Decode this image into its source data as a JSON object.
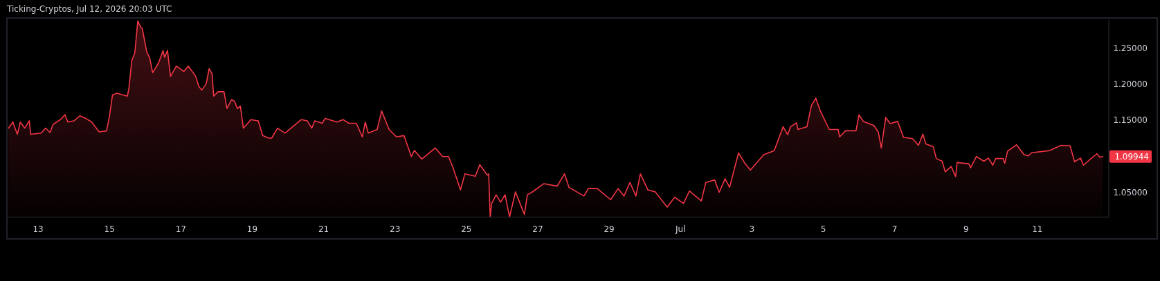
{
  "chart_data": {
    "type": "area",
    "title": "Ticking-Cryptos, Jul 12, 2026 20:03 UTC",
    "xlim": [
      "2026-06-12T03:00",
      "2026-07-13T00:00"
    ],
    "ylim": [
      1.0155,
      1.2893
    ],
    "xticks": [
      {
        "value": "2026-06-13",
        "label": "13"
      },
      {
        "value": "2026-06-15",
        "label": "15"
      },
      {
        "value": "2026-06-17",
        "label": "17"
      },
      {
        "value": "2026-06-19",
        "label": "19"
      },
      {
        "value": "2026-06-21",
        "label": "21"
      },
      {
        "value": "2026-06-23",
        "label": "23"
      },
      {
        "value": "2026-06-25",
        "label": "25"
      },
      {
        "value": "2026-06-27",
        "label": "27"
      },
      {
        "value": "2026-06-29",
        "label": "29"
      },
      {
        "value": "2026-07-01",
        "label": "Jul"
      },
      {
        "value": "2026-07-03",
        "label": "3"
      },
      {
        "value": "2026-07-05",
        "label": "5"
      },
      {
        "value": "2026-07-07",
        "label": "7"
      },
      {
        "value": "2026-07-09",
        "label": "9"
      },
      {
        "value": "2026-07-11",
        "label": "11"
      }
    ],
    "yticks": [
      {
        "value": 1.05,
        "label": "1.05000"
      },
      {
        "value": 1.15,
        "label": "1.15000"
      },
      {
        "value": 1.2,
        "label": "1.20000"
      },
      {
        "value": 1.25,
        "label": "1.25000"
      }
    ],
    "grid": false,
    "annotations": [
      "1.09944"
    ],
    "x": [
      "2026-06-12T04:00",
      "2026-06-12T07:00",
      "2026-06-12T10:00",
      "2026-06-12T12:00",
      "2026-06-12T15:00",
      "2026-06-12T18:00",
      "2026-06-12T19:00",
      "2026-06-13T02:00",
      "2026-06-13T05:00",
      "2026-06-13T08:00",
      "2026-06-13T10:00",
      "2026-06-13T15:00",
      "2026-06-13T18:00",
      "2026-06-13T20:00",
      "2026-06-14T00:00",
      "2026-06-14T04:00",
      "2026-06-14T08:00",
      "2026-06-14T12:00",
      "2026-06-14T17:00",
      "2026-06-14T22:00",
      "2026-06-15T00:00",
      "2026-06-15T02:00",
      "2026-06-15T05:00",
      "2026-06-15T12:00",
      "2026-06-15T13:00",
      "2026-06-15T15:00",
      "2026-06-15T17:00",
      "2026-06-15T19:00",
      "2026-06-15T21:00",
      "2026-06-15T22:00",
      "2026-06-16T01:00",
      "2026-06-16T03:00",
      "2026-06-16T05:00",
      "2026-06-16T09:00",
      "2026-06-16T12:00",
      "2026-06-16T13:00",
      "2026-06-16T15:00",
      "2026-06-16T17:00",
      "2026-06-16T21:00",
      "2026-06-17T02:00",
      "2026-06-17T05:00",
      "2026-06-17T10:00",
      "2026-06-17T12:00",
      "2026-06-17T14:00",
      "2026-06-17T17:00",
      "2026-06-17T19:00",
      "2026-06-17T21:00",
      "2026-06-17T22:00",
      "2026-06-18T01:00",
      "2026-06-18T05:00",
      "2026-06-18T07:00",
      "2026-06-18T10:00",
      "2026-06-18T12:00",
      "2026-06-18T14:00",
      "2026-06-18T16:00",
      "2026-06-18T18:00",
      "2026-06-18T21:00",
      "2026-06-18T23:00",
      "2026-06-19T04:00",
      "2026-06-19T07:00",
      "2026-06-19T11:00",
      "2026-06-19T13:00",
      "2026-06-19T17:00",
      "2026-06-19T22:00",
      "2026-06-20T02:00",
      "2026-06-20T09:00",
      "2026-06-20T13:00",
      "2026-06-20T16:00",
      "2026-06-20T18:00",
      "2026-06-20T23:00",
      "2026-06-21T01:00",
      "2026-06-21T09:00",
      "2026-06-21T13:00",
      "2026-06-21T17:00",
      "2026-06-21T22:00",
      "2026-06-22T02:00",
      "2026-06-22T04:00",
      "2026-06-22T06:00",
      "2026-06-22T12:00",
      "2026-06-22T15:00",
      "2026-06-22T20:00",
      "2026-06-23T01:00",
      "2026-06-23T06:00",
      "2026-06-23T11:00",
      "2026-06-23T13:00",
      "2026-06-23T18:00",
      "2026-06-24T03:00",
      "2026-06-24T08:00",
      "2026-06-24T12:00",
      "2026-06-24T15:00",
      "2026-06-24T20:00",
      "2026-06-24T23:00",
      "2026-06-25T06:00",
      "2026-06-25T09:00",
      "2026-06-25T14:00",
      "2026-06-25T15:00",
      "2026-06-25T16:00",
      "2026-06-25T17:00",
      "2026-06-25T20:00",
      "2026-06-25T23:00",
      "2026-06-26T02:00",
      "2026-06-26T05:00",
      "2026-06-26T09:00",
      "2026-06-26T15:00",
      "2026-06-26T17:00",
      "2026-06-26T20:00",
      "2026-06-27T04:00",
      "2026-06-27T13:00",
      "2026-06-27T18:00",
      "2026-06-27T21:00",
      "2026-06-28T07:00",
      "2026-06-28T10:00",
      "2026-06-28T16:00",
      "2026-06-29T01:00",
      "2026-06-29T06:00",
      "2026-06-29T10:00",
      "2026-06-29T14:00",
      "2026-06-29T18:00",
      "2026-06-29T21:00",
      "2026-06-30T02:00",
      "2026-06-30T07:00",
      "2026-06-30T15:00",
      "2026-06-30T20:00",
      "2026-07-01T02:00",
      "2026-07-01T06:00",
      "2026-07-01T14:00",
      "2026-07-01T17:00",
      "2026-07-01T23:00",
      "2026-07-02T02:00",
      "2026-07-02T06:00",
      "2026-07-02T09:00",
      "2026-07-02T15:00",
      "2026-07-02T19:00",
      "2026-07-02T23:00",
      "2026-07-03T08:00",
      "2026-07-03T15:00",
      "2026-07-03T21:00",
      "2026-07-04T00:00",
      "2026-07-04T02:00",
      "2026-07-04T06:00",
      "2026-07-04T07:00",
      "2026-07-04T13:00",
      "2026-07-04T16:00",
      "2026-07-04T19:00",
      "2026-07-04T22:00",
      "2026-07-05T04:00",
      "2026-07-05T10:00",
      "2026-07-05T11:00",
      "2026-07-05T15:00",
      "2026-07-05T22:00",
      "2026-07-06T00:00",
      "2026-07-06T03:00",
      "2026-07-06T10:00",
      "2026-07-06T13:00",
      "2026-07-06T15:00",
      "2026-07-06T18:00",
      "2026-07-06T21:00",
      "2026-07-07T02:00",
      "2026-07-07T06:00",
      "2026-07-07T12:00",
      "2026-07-07T16:00",
      "2026-07-07T19:00",
      "2026-07-07T21:00",
      "2026-07-08T02:00",
      "2026-07-08T04:00",
      "2026-07-08T08:00",
      "2026-07-08T10:00",
      "2026-07-08T14:00",
      "2026-07-08T17:00",
      "2026-07-08T18:00",
      "2026-07-09T02:00",
      "2026-07-09T03:00",
      "2026-07-09T07:00",
      "2026-07-09T12:00",
      "2026-07-09T15:00",
      "2026-07-09T18:00",
      "2026-07-09T20:00",
      "2026-07-10T01:00",
      "2026-07-10T02:00",
      "2026-07-10T04:00",
      "2026-07-10T10:00",
      "2026-07-10T15:00",
      "2026-07-10T18:00",
      "2026-07-10T20:00",
      "2026-07-11T08:00",
      "2026-07-11T16:00",
      "2026-07-11T22:00",
      "2026-07-12T01:00",
      "2026-07-12T05:00",
      "2026-07-12T07:00",
      "2026-07-12T11:00",
      "2026-07-12T16:00",
      "2026-07-12T18:00",
      "2026-07-12T20:00"
    ],
    "series": [
      {
        "color": "#f23645",
        "values": [
          1.1388,
          1.1474,
          1.1303,
          1.1474,
          1.1388,
          1.1491,
          1.1303,
          1.132,
          1.139,
          1.1327,
          1.144,
          1.1508,
          1.1576,
          1.1474,
          1.149,
          1.156,
          1.1525,
          1.1474,
          1.1337,
          1.135,
          1.156,
          1.185,
          1.1874,
          1.1833,
          1.1935,
          1.2329,
          1.2432,
          1.2876,
          1.2791,
          1.2774,
          1.2449,
          1.2363,
          1.2158,
          1.2295,
          1.2466,
          1.2373,
          1.2466,
          1.2107,
          1.225,
          1.2175,
          1.225,
          1.2107,
          1.197,
          1.1918,
          1.2004,
          1.2216,
          1.2141,
          1.1833,
          1.1894,
          1.1894,
          1.1662,
          1.1782,
          1.1764,
          1.1662,
          1.1696,
          1.1388,
          1.1457,
          1.1508,
          1.1491,
          1.1286,
          1.1251,
          1.1251,
          1.1388,
          1.132,
          1.1388,
          1.1508,
          1.1491,
          1.1388,
          1.1491,
          1.1457,
          1.1525,
          1.1474,
          1.1508,
          1.1457,
          1.1457,
          1.1268,
          1.1474,
          1.132,
          1.1371,
          1.1628,
          1.1371,
          1.1268,
          1.1286,
          1.0995,
          1.108,
          1.096,
          1.1114,
          1.0995,
          1.0995,
          1.0841,
          1.0533,
          1.0755,
          1.0721,
          1.0882,
          1.0738,
          1.0755,
          1.0157,
          1.0345,
          1.0464,
          1.0362,
          1.0464,
          1.0157,
          1.0505,
          1.0191,
          1.0464,
          1.0499,
          1.0618,
          1.0584,
          1.0755,
          1.0567,
          1.0447,
          1.055,
          1.055,
          1.0396,
          1.055,
          1.0447,
          1.0635,
          1.0447,
          1.0755,
          1.0533,
          1.0505,
          1.0293,
          1.043,
          1.0345,
          1.0516,
          1.0379,
          1.0635,
          1.067,
          1.0499,
          1.0687,
          1.0567,
          1.1046,
          1.0909,
          1.0807,
          1.1022,
          1.1077,
          1.1408,
          1.1298,
          1.1408,
          1.1463,
          1.1371,
          1.1408,
          1.1702,
          1.1805,
          1.1629,
          1.1371,
          1.1371,
          1.1268,
          1.1353,
          1.1353,
          1.1574,
          1.1482,
          1.1426,
          1.1335,
          1.1114,
          1.1537,
          1.1452,
          1.1482,
          1.1261,
          1.1243,
          1.1151,
          1.1305,
          1.1169,
          1.1132,
          1.0967,
          1.093,
          1.0783,
          1.0857,
          1.0717,
          1.0912,
          1.0893,
          1.0838,
          1.0996,
          1.093,
          1.0974,
          1.0875,
          1.0967,
          1.0967,
          1.0901,
          1.107,
          1.1158,
          1.1022,
          1.1004,
          1.1048,
          1.1077,
          1.1151,
          1.1143,
          1.0923,
          1.0974,
          1.0875,
          1.0949,
          1.1033,
          1.0985,
          1.09944
        ]
      }
    ]
  }
}
